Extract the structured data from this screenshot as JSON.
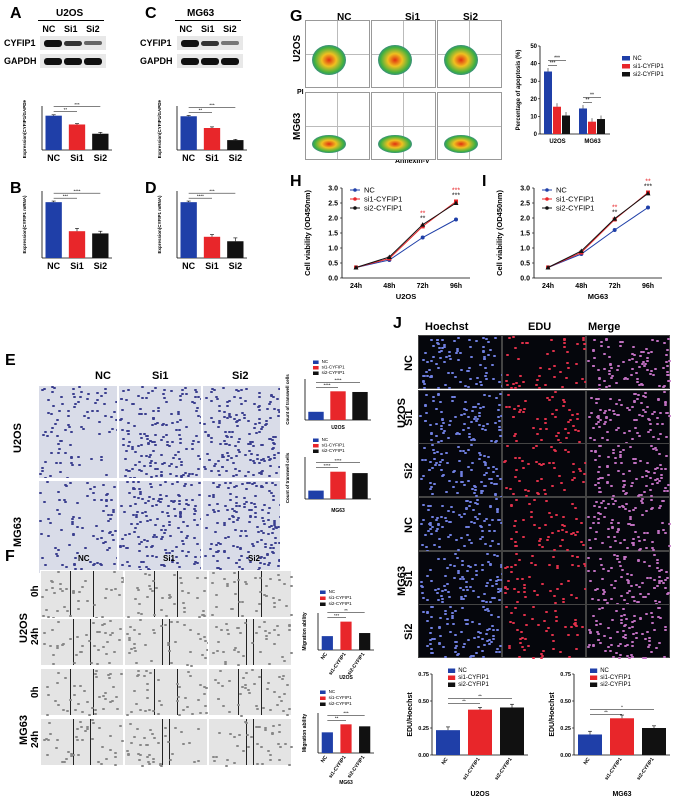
{
  "panels": {
    "A": {
      "letter": "A",
      "cell": "U2OS",
      "protein_labels": [
        "CYFIP1",
        "GAPDH"
      ],
      "lanes": [
        "NC",
        "Si1",
        "Si2"
      ],
      "chart": {
        "type": "bar",
        "categories": [
          "NC",
          "Si1",
          "Si2"
        ],
        "values": [
          0.78,
          0.58,
          0.37
        ],
        "errors": [
          0.02,
          0.02,
          0.03
        ],
        "ylabel": "Expression(CYFIP1/GAPDH)",
        "ylim": [
          0,
          1.0
        ],
        "sig": [
          "**",
          "***"
        ],
        "colors": [
          "#1f3fa8",
          "#e8262a",
          "#111111"
        ]
      }
    },
    "B": {
      "letter": "B",
      "xlabel": "U2OS",
      "chart": {
        "type": "bar",
        "categories": [
          "NC",
          "Si1",
          "Si2"
        ],
        "values": [
          1.0,
          0.48,
          0.44
        ],
        "errors": [
          0.02,
          0.05,
          0.04
        ],
        "ylabel": "Expression(CYFIP1 mRNA)",
        "ylim": [
          0,
          1.2
        ],
        "sig": [
          "***",
          "****"
        ],
        "colors": [
          "#1f3fa8",
          "#e8262a",
          "#111111"
        ]
      }
    },
    "C": {
      "letter": "C",
      "cell": "MG63",
      "protein_labels": [
        "CYFIP1",
        "GAPDH"
      ],
      "lanes": [
        "NC",
        "Si1",
        "Si2"
      ],
      "chart": {
        "type": "bar",
        "categories": [
          "NC",
          "Si1",
          "Si2"
        ],
        "values": [
          0.92,
          0.6,
          0.27
        ],
        "errors": [
          0.02,
          0.03,
          0.02
        ],
        "ylabel": "Expression(CYFIP1/GAPDH)",
        "ylim": [
          0,
          1.2
        ],
        "sig": [
          "**",
          "***"
        ],
        "colors": [
          "#1f3fa8",
          "#e8262a",
          "#111111"
        ]
      }
    },
    "D": {
      "letter": "D",
      "xlabel": "MG63",
      "chart": {
        "type": "bar",
        "categories": [
          "NC",
          "Si1",
          "Si2"
        ],
        "values": [
          1.0,
          0.38,
          0.3
        ],
        "errors": [
          0.02,
          0.04,
          0.06
        ],
        "ylabel": "Expression(CYFIP1 mRNA)",
        "ylim": [
          0,
          1.2
        ],
        "sig": [
          "****",
          "***"
        ],
        "colors": [
          "#1f3fa8",
          "#e8262a",
          "#111111"
        ]
      }
    },
    "E": {
      "letter": "E",
      "cols": [
        "NC",
        "Si1",
        "Si2"
      ],
      "rows": [
        "U2OS",
        "MG63"
      ],
      "charts": [
        {
          "type": "bar",
          "categories": [
            "NC",
            "si1-CYFIP1",
            "si2-CYFIP1"
          ],
          "legend": [
            "NC",
            "si1-CYFIP1",
            "si2-CYFIP1"
          ],
          "values": [
            120,
            420,
            410
          ],
          "ylabel": "Count of transwell cells",
          "xlabel": "U2OS",
          "ylim": [
            0,
            600
          ],
          "sig": [
            "****",
            "****"
          ],
          "colors": [
            "#1f3fa8",
            "#e8262a",
            "#111111"
          ]
        },
        {
          "type": "bar",
          "categories": [
            "NC",
            "si1-CYFIP1",
            "si2-CYFIP1"
          ],
          "legend": [
            "NC",
            "si1-CYFIP1",
            "si2-CYFIP1"
          ],
          "values": [
            120,
            390,
            370
          ],
          "ylabel": "Count of transwell cells",
          "xlabel": "MG63",
          "ylim": [
            0,
            600
          ],
          "sig": [
            "****",
            "****"
          ],
          "colors": [
            "#1f3fa8",
            "#e8262a",
            "#111111"
          ]
        }
      ]
    },
    "F": {
      "letter": "F",
      "cols": [
        "NC",
        "Si1",
        "Si2"
      ],
      "rows": [
        "U2OS",
        "MG63"
      ],
      "times": [
        "0h",
        "24h"
      ],
      "charts": [
        {
          "type": "bar",
          "categories": [
            "NC",
            "si1-CYFIP1",
            "si2-CYFIP1"
          ],
          "legend": [
            "NC",
            "si1-CYFIP1",
            "si2-CYFIP1"
          ],
          "values": [
            0.45,
            0.92,
            0.55
          ],
          "ylabel": "Migration ability",
          "xlabel": "U2OS",
          "ylim": [
            0,
            1.2
          ],
          "sig": [
            "***",
            "**"
          ],
          "colors": [
            "#1f3fa8",
            "#e8262a",
            "#111111"
          ]
        },
        {
          "type": "bar",
          "categories": [
            "NC",
            "si1-CYFIP1",
            "si2-CYFIP1"
          ],
          "legend": [
            "NC",
            "si1-CYFIP1",
            "si2-CYFIP1"
          ],
          "values": [
            0.62,
            0.86,
            0.8
          ],
          "ylabel": "Migration ability",
          "xlabel": "MG63",
          "ylim": [
            0,
            1.2
          ],
          "sig": [
            "**",
            "***"
          ],
          "colors": [
            "#1f3fa8",
            "#e8262a",
            "#111111"
          ]
        }
      ]
    },
    "G": {
      "letter": "G",
      "cols": [
        "NC",
        "Si1",
        "Si2"
      ],
      "rows": [
        "U2OS",
        "MG63"
      ],
      "x_axis": "Annexin-V",
      "y_axis": "PI",
      "chart": {
        "type": "bar",
        "categories": [
          "U2OS",
          "MG63"
        ],
        "legend": [
          "NC",
          "si1-CYFIP1",
          "si2-CYFIP1"
        ],
        "series": [
          {
            "name": "NC",
            "values": [
              35.5,
              14.5
            ]
          },
          {
            "name": "si1-CYFIP1",
            "values": [
              15.5,
              7.0
            ]
          },
          {
            "name": "si2-CYFIP1",
            "values": [
              10.5,
              8.5
            ]
          }
        ],
        "ylabel": "Percentage of apoptosis (%)",
        "ylim": [
          0,
          50
        ],
        "yticks": [
          "0",
          "10",
          "20",
          "30",
          "40",
          "50"
        ],
        "sig": [
          "***",
          "***",
          "**",
          "**"
        ],
        "colors": [
          "#1f3fa8",
          "#e8262a",
          "#111111"
        ]
      }
    },
    "H": {
      "letter": "H",
      "chart": {
        "type": "line",
        "x": [
          "24h",
          "48h",
          "72h",
          "96h"
        ],
        "legend": [
          "NC",
          "si1-CYFIP1",
          "si2-CYFIP1"
        ],
        "series": [
          {
            "name": "NC",
            "values": [
              0.35,
              0.6,
              1.35,
              1.95
            ]
          },
          {
            "name": "si1-CYFIP1",
            "values": [
              0.35,
              0.65,
              1.72,
              2.55
            ]
          },
          {
            "name": "si2-CYFIP1",
            "values": [
              0.35,
              0.7,
              1.78,
              2.5
            ]
          }
        ],
        "ylabel": "Cell viability (OD450nm)",
        "xlabel": "U2OS",
        "ylim": [
          0,
          3.0
        ],
        "yticks": [
          "0.0",
          "0.5",
          "1.0",
          "1.5",
          "2.0",
          "2.5",
          "3.0"
        ],
        "sig72": [
          "**",
          "**"
        ],
        "sig96": [
          "***",
          "***"
        ],
        "colors": [
          "#1f3fa8",
          "#e8262a",
          "#111111"
        ]
      }
    },
    "I": {
      "letter": "I",
      "chart": {
        "type": "line",
        "x": [
          "24h",
          "48h",
          "72h",
          "96h"
        ],
        "legend": [
          "NC",
          "si1-CYFIP1",
          "si2-CYFIP1"
        ],
        "series": [
          {
            "name": "NC",
            "values": [
              0.35,
              0.8,
              1.6,
              2.35
            ]
          },
          {
            "name": "si1-CYFIP1",
            "values": [
              0.35,
              0.85,
              1.95,
              2.85
            ]
          },
          {
            "name": "si2-CYFIP1",
            "values": [
              0.35,
              0.9,
              1.98,
              2.82
            ]
          }
        ],
        "ylabel": "Cell viability (OD450nm)",
        "xlabel": "MG63",
        "ylim": [
          0,
          3.0
        ],
        "yticks": [
          "0.0",
          "0.5",
          "1.0",
          "1.5",
          "2.0",
          "2.5",
          "3.0"
        ],
        "sig72": [
          "**",
          "**"
        ],
        "sig96": [
          "**",
          "***"
        ],
        "colors": [
          "#1f3fa8",
          "#e8262a",
          "#111111"
        ]
      }
    },
    "J": {
      "letter": "J",
      "cols": [
        "Hoechst",
        "EDU",
        "Merge"
      ],
      "cells": [
        "U2OS",
        "MG63"
      ],
      "rows": [
        "NC",
        "Si1",
        "Si2"
      ],
      "charts": [
        {
          "type": "bar",
          "categories": [
            "NC",
            "si1-CYFIP1",
            "si2-CYFIP1"
          ],
          "legend": [
            "NC",
            "si1-CYFIP1",
            "si2-CYFIP1"
          ],
          "values": [
            0.23,
            0.42,
            0.44
          ],
          "errors": [
            0.03,
            0.02,
            0.03
          ],
          "ylabel": "EDU/Hoechst",
          "xlabel": "U2OS",
          "ylim": [
            0,
            0.75
          ],
          "yticks": [
            "0.00",
            "0.25",
            "0.50",
            "0.75"
          ],
          "sig": [
            "**",
            "**"
          ],
          "colors": [
            "#1f3fa8",
            "#e8262a",
            "#111111"
          ]
        },
        {
          "type": "bar",
          "categories": [
            "NC",
            "si1-CYFIP1",
            "si2-CYFIP1"
          ],
          "legend": [
            "NC",
            "si1-CYFIP1",
            "si2-CYFIP1"
          ],
          "values": [
            0.19,
            0.34,
            0.25
          ],
          "errors": [
            0.03,
            0.03,
            0.02
          ],
          "ylabel": "EDU/Hoechst",
          "xlabel": "MG63",
          "ylim": [
            0,
            0.75
          ],
          "yticks": [
            "0.00",
            "0.25",
            "0.50",
            "0.75"
          ],
          "sig": [
            "**",
            "*"
          ],
          "colors": [
            "#1f3fa8",
            "#e8262a",
            "#111111"
          ]
        }
      ]
    }
  }
}
